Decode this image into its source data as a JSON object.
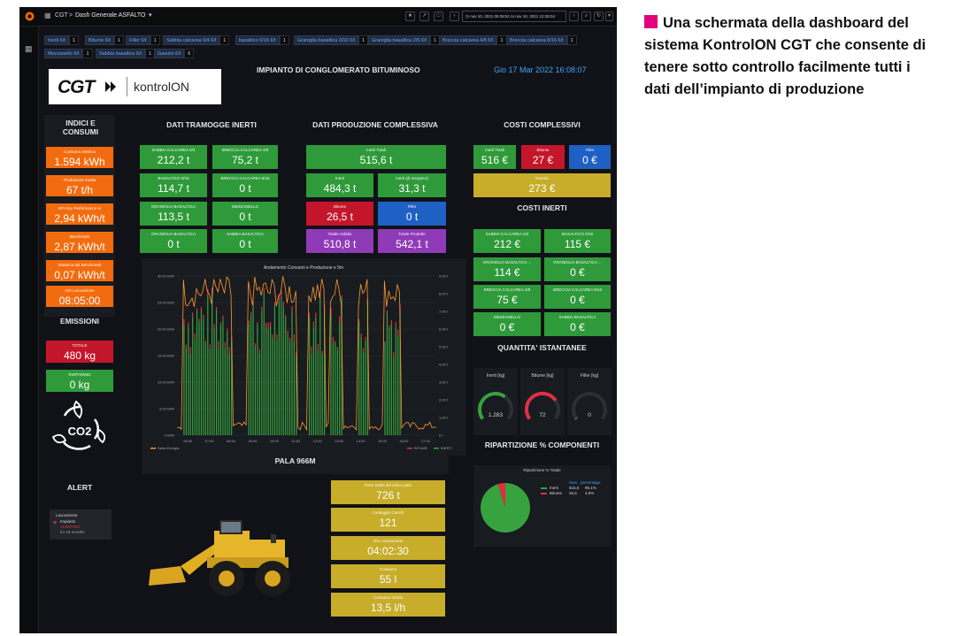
{
  "topbar": {
    "breadcrumb_root": "CGT",
    "breadcrumb_sep": ">",
    "dashboard_name": "Dash Generale ASFALTO",
    "time_range": "nov 10, 2021 05:28:51 to nov 10, 2021 12:28:04"
  },
  "filters": [
    {
      "label": "Inerti 6/t",
      "value": "1"
    },
    {
      "label": "Bitume 6/t",
      "value": "1"
    },
    {
      "label": "Filler 6/t",
      "value": "1"
    },
    {
      "label": "Sabbia calcarea 0/4 6/t",
      "value": "1"
    },
    {
      "label": "basaltico 0/16 €/t",
      "value": "1"
    },
    {
      "label": "Graniglia basaltica 0/10 €/t",
      "value": "1"
    },
    {
      "label": "Graniglia basaltica 2/5 €/t",
      "value": "1"
    },
    {
      "label": "Breccia calcarea 4/8 €/t",
      "value": "1"
    },
    {
      "label": "Breccia calcarea 8/16 €/t",
      "value": "1"
    },
    {
      "label": "Mezzanello 6/t",
      "value": "1"
    },
    {
      "label": "Sabbia basaltica 6/t",
      "value": "1"
    },
    {
      "label": "Gasolio 6/t",
      "value": "6"
    }
  ],
  "header": {
    "logo_left": "CGT",
    "logo_right": "kontrolON",
    "title": "IMPIANTO DI CONGLOMERATO BITUMINOSO",
    "datetime": "Gio 17 Mar 2022 16:08:07"
  },
  "sections": {
    "indici": "INDICI E CONSUMI",
    "tramogge": "DATI TRAMOGGE INERTI",
    "produzione": "DATI PRODUZIONE COMPLESSIVA",
    "costi": "COSTI COMPLESSIVI",
    "costi_inerti": "COSTI INERTI",
    "emissioni": "EMISSIONI",
    "alert": "ALERT",
    "pala": "PALA 966M",
    "quantita": "QUANTITA' ISTANTANEE",
    "ripartizione": "RIPARTIZIONE % COMPONENTI"
  },
  "indici": [
    {
      "label": "Consumo elettrico",
      "value": "1.594 kWh"
    },
    {
      "label": "Produzione media",
      "value": "67 t/h"
    },
    {
      "label": "KPI Key Performance In",
      "value": "2,94 kWh/t"
    },
    {
      "label": "Benchmark",
      "value": "2,87 kWh/t"
    },
    {
      "label": "Distanza dal Benchmark",
      "value": "0,07 kWh/t"
    },
    {
      "label": "Ore Lavorazione",
      "value": "08:05:00"
    }
  ],
  "emissioni": [
    {
      "label": "TOTALE",
      "value": "480 kg"
    },
    {
      "label": "RISPARMIO",
      "value": "0 kg"
    }
  ],
  "co2_label": "CO2",
  "alert_item": {
    "title": "Lavorazione",
    "subtitle": "Impianto",
    "state": "ALERTING",
    "time": "for 18 months"
  },
  "tramogge": [
    {
      "label": "SABBIA CALCAREA 0/4",
      "value": "212,2 t"
    },
    {
      "label": "BRECCIA CALCAREA 4/8",
      "value": "75,2 t"
    },
    {
      "label": "BASALTICO 0/16",
      "value": "114,7 t"
    },
    {
      "label": "BRECCIA CALCAREA 8/16",
      "value": "0 t"
    },
    {
      "label": "GRANIGLIA BASALTICA",
      "value": "113,5 t"
    },
    {
      "label": "MEZZANELLO",
      "value": "0 t"
    },
    {
      "label": "GRANIGLIA BASALTICA",
      "value": "0 t"
    },
    {
      "label": "SABBIA BASALTICA",
      "value": "0 t"
    }
  ],
  "produzione": {
    "inerti_totali": {
      "label": "Inerti Totali",
      "value": "515,6 t"
    },
    "inerti": {
      "label": "Inerti",
      "value": "484,3 t"
    },
    "inerti_recuperati": {
      "label": "Inerti (di recupero)",
      "value": "31,3 t"
    },
    "bitume": {
      "label": "Bitume",
      "value": "26,5 t"
    },
    "filler": {
      "label": "Filler",
      "value": "0 t"
    },
    "totale_asfalto": {
      "label": "Totale Asfalto",
      "value": "510,8 t"
    },
    "totale_prodotto": {
      "label": "Totale Prodotto",
      "value": "542,1 t"
    }
  },
  "costi": {
    "inerti": {
      "label": "Inerti Totali",
      "value": "516 €"
    },
    "bitume": {
      "label": "Bitume",
      "value": "27 €"
    },
    "filler": {
      "label": "Filler",
      "value": "0 €"
    },
    "gasolio": {
      "label": "Gasolio",
      "value": "273 €"
    }
  },
  "costi_inerti": [
    {
      "label": "SABBIA CALCAREA 0/4",
      "value": "212 €"
    },
    {
      "label": "BASALTICO 0/16",
      "value": "115 €"
    },
    {
      "label": "GRANIGLIA BASALTICA ...",
      "value": "114 €"
    },
    {
      "label": "GRANIGLIA BASALTICA ...",
      "value": "0 €"
    },
    {
      "label": "BRECCIA CALCAREA 4/8",
      "value": "75 €"
    },
    {
      "label": "BRECCIA CALCAREA 8/16",
      "value": "0 €"
    },
    {
      "label": "MEZZANELLO",
      "value": "0 €"
    },
    {
      "label": "SABBIA BASALTICA",
      "value": "0 €"
    }
  ],
  "gauges": [
    {
      "label": "Inerti [kg]",
      "value": 1283,
      "display": "1.283",
      "max": 2000,
      "color": "#37a33f"
    },
    {
      "label": "Bitume [kg]",
      "value": 72,
      "display": "72",
      "max": 100,
      "color": "#e02f44"
    },
    {
      "label": "Filler [kg]",
      "value": 0,
      "display": "0",
      "max": 100,
      "color": "#3274d9"
    }
  ],
  "pie": {
    "title": "Ripartizione % Totale",
    "header_sum": "Sum",
    "header_pct": "percentage",
    "rows": [
      {
        "name": "Inerti",
        "sum": "515,6",
        "pct": "95,1%",
        "color": "#37a33f"
      },
      {
        "name": "Bitume",
        "sum": "26,5",
        "pct": "4,9%",
        "color": "#e02f44"
      }
    ]
  },
  "pala": [
    {
      "label": "Peso totale del carico pala",
      "value": "726 t"
    },
    {
      "label": "Conteggio Carichi",
      "value": "121"
    },
    {
      "label": "Ore Lavorazione",
      "value": "04:02:30"
    },
    {
      "label": "Consumo",
      "value": "55 l"
    },
    {
      "label": "Consumo Orario",
      "value": "13,5 l/h"
    }
  ],
  "chart_data": {
    "type": "bar",
    "title": "Andamento Consumi e Produzione e 5m",
    "left_ticks": [
      "0 kWh",
      "5.00 kWh",
      "10.00 kWh",
      "15.00 kWh",
      "20.00 kWh",
      "25.00 kWh",
      "30.00 kWh"
    ],
    "right_ticks": [
      "0 t",
      "1,00 t",
      "2,00 t",
      "3,00 t",
      "4,00 t",
      "5,00 t",
      "6,00 t",
      "7,00 t",
      "8,00 t",
      "9,00 t"
    ],
    "x_ticks": [
      "06:00",
      "07:00",
      "08:00",
      "09:00",
      "10:00",
      "11:00",
      "12:00",
      "13:00",
      "14:00",
      "15:00",
      "16:00",
      "17:00"
    ],
    "y_left_range": [
      0,
      30
    ],
    "y_right_range": [
      0,
      9
    ],
    "legend": [
      "Delta Energia",
      "BITUME",
      "INERTI"
    ],
    "series_colors": {
      "energy": "#ff9830",
      "bitume": "#e02f44",
      "inerti": "#37a33f"
    },
    "inerti_active_ranges": [
      [
        0.25,
        2.6
      ],
      [
        3.3,
        5.5
      ],
      [
        6.0,
        6.8
      ],
      [
        7.0,
        7.6
      ],
      [
        8.3,
        8.8
      ],
      [
        9.5,
        10.3
      ]
    ],
    "inerti_peak_t": 8.5
  },
  "caption": "Una schermata della dashboard del sistema KontrolON CGT che consente di tenere sotto controllo facilmente tutti i dati dell’impianto di produzione"
}
